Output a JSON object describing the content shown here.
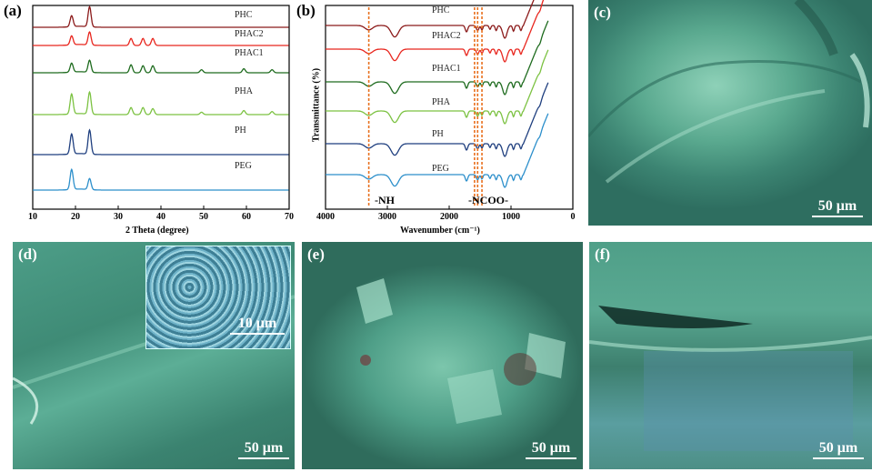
{
  "panels": {
    "a": {
      "label": "(a)"
    },
    "b": {
      "label": "(b)"
    },
    "c": {
      "label": "(c)",
      "scale": "50 μm"
    },
    "d": {
      "label": "(d)",
      "scale": "50 μm",
      "inset_scale": "10 μm"
    },
    "e": {
      "label": "(e)",
      "scale": "50 μm"
    },
    "f": {
      "label": "(f)",
      "scale": "50 μm"
    }
  },
  "chart_data": [
    {
      "type": "line",
      "title": "",
      "panel": "(a)",
      "xlabel": "2 Theta (degree)",
      "ylabel": "",
      "xlim": [
        10,
        70
      ],
      "xticks": [
        10,
        20,
        30,
        40,
        50,
        60,
        70
      ],
      "series": [
        {
          "name": "PHC",
          "color": "#8B1A1A",
          "peaks": [
            [
              19.1,
              0.55
            ],
            [
              23.3,
              1.0
            ]
          ]
        },
        {
          "name": "PHAC2",
          "color": "#E8261E",
          "peaks": [
            [
              19.1,
              0.45
            ],
            [
              23.3,
              0.65
            ],
            [
              33.0,
              0.35
            ],
            [
              35.8,
              0.35
            ],
            [
              38.1,
              0.35
            ]
          ]
        },
        {
          "name": "PHAC1",
          "color": "#1E6B1E",
          "peaks": [
            [
              19.1,
              0.45
            ],
            [
              23.3,
              0.6
            ],
            [
              33.0,
              0.4
            ],
            [
              35.8,
              0.35
            ],
            [
              38.1,
              0.35
            ],
            [
              49.5,
              0.15
            ],
            [
              59.4,
              0.2
            ],
            [
              66.0,
              0.15
            ]
          ]
        },
        {
          "name": "PHA",
          "color": "#7CC242",
          "peaks": [
            [
              19.1,
              1.0
            ],
            [
              23.3,
              1.1
            ],
            [
              33.0,
              0.35
            ],
            [
              35.8,
              0.35
            ],
            [
              38.1,
              0.3
            ],
            [
              49.5,
              0.12
            ],
            [
              59.4,
              0.2
            ],
            [
              66.0,
              0.15
            ]
          ]
        },
        {
          "name": "PH",
          "color": "#1F3F7F",
          "peaks": [
            [
              19.1,
              1.0
            ],
            [
              23.3,
              1.2
            ]
          ]
        },
        {
          "name": "PEG",
          "color": "#2C8FCB",
          "peaks": [
            [
              19.1,
              1.0
            ],
            [
              23.3,
              0.55
            ]
          ]
        }
      ]
    },
    {
      "type": "line",
      "title": "",
      "panel": "(b)",
      "xlabel": "Wavenumber (cm⁻¹)",
      "ylabel": "Transmittance (%)",
      "xlim": [
        4000,
        0
      ],
      "xticks": [
        4000,
        3000,
        2000,
        1000,
        0
      ],
      "annotations": [
        "-NH",
        "-NCOO-"
      ],
      "reference_lines_cm": [
        3300,
        1590,
        1540,
        1470
      ],
      "series": [
        {
          "name": "PHC",
          "color": "#8B1A1A"
        },
        {
          "name": "PHAC2",
          "color": "#E8261E"
        },
        {
          "name": "PHAC1",
          "color": "#1E6B1E"
        },
        {
          "name": "PHA",
          "color": "#7CC242"
        },
        {
          "name": "PH",
          "color": "#1F3F7F"
        },
        {
          "name": "PEG",
          "color": "#2C8FCB"
        }
      ]
    }
  ]
}
